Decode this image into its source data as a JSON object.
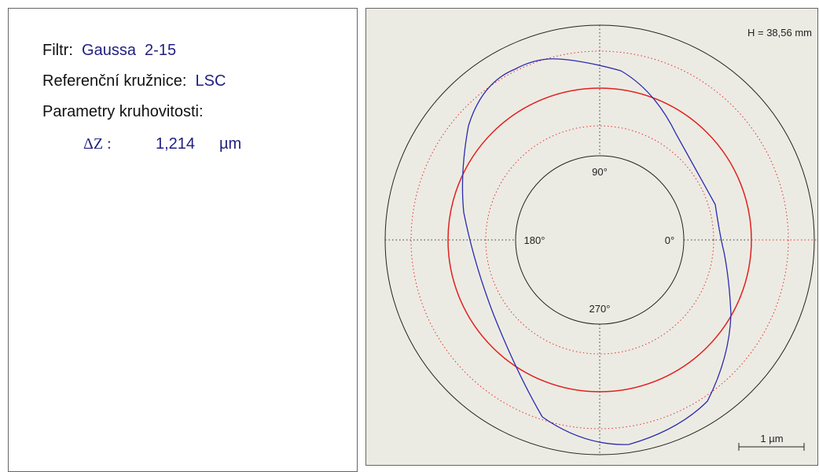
{
  "info": {
    "filter": {
      "label": "Filtr:",
      "value": "Gaussa  2-15"
    },
    "reference": {
      "label": "Referenční kružnice:",
      "value": "LSC"
    },
    "parameters_title": "Parametry kruhovitosti:",
    "delta": {
      "label": "ΔZ :",
      "value": "1,214",
      "unit": "µm"
    }
  },
  "plot": {
    "height_label": "H = 38,56 mm",
    "angles": {
      "a90": "90°",
      "a180": "180°",
      "a0": "0°",
      "a270": "270°"
    },
    "scale_label": "1 µm"
  }
}
